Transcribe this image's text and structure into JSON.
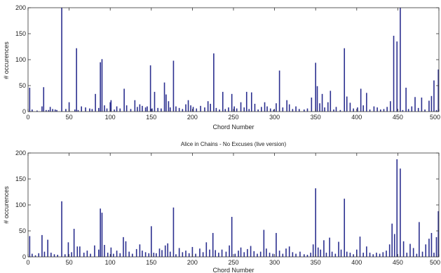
{
  "chart_data": [
    {
      "type": "bar",
      "title": "",
      "xlabel": "Chord Number",
      "ylabel": "# occurences",
      "xlim": [
        0,
        500
      ],
      "ylim": [
        0,
        200
      ],
      "xticks": [
        0,
        50,
        100,
        150,
        200,
        250,
        300,
        350,
        400,
        450,
        500
      ],
      "xtick_labels": [
        "0",
        "50",
        "100",
        "150",
        "200",
        "250",
        "300",
        "350",
        "400",
        "450",
        "500"
      ],
      "yticks": [
        0,
        50,
        100,
        150,
        200
      ],
      "ytick_labels": [
        "0",
        "50",
        "100",
        "150",
        "200"
      ],
      "color": "#2b2f8f",
      "bars": [
        [
          2,
          46
        ],
        [
          5,
          4
        ],
        [
          11,
          2
        ],
        [
          17,
          10
        ],
        [
          19,
          47
        ],
        [
          22,
          3
        ],
        [
          25,
          3
        ],
        [
          27,
          9
        ],
        [
          30,
          5
        ],
        [
          33,
          4
        ],
        [
          35,
          3
        ],
        [
          41,
          200
        ],
        [
          46,
          5
        ],
        [
          50,
          18
        ],
        [
          57,
          4
        ],
        [
          59,
          122
        ],
        [
          61,
          3
        ],
        [
          65,
          10
        ],
        [
          70,
          8
        ],
        [
          75,
          6
        ],
        [
          78,
          5
        ],
        [
          82,
          34
        ],
        [
          86,
          7
        ],
        [
          88,
          95
        ],
        [
          90,
          101
        ],
        [
          93,
          12
        ],
        [
          96,
          6
        ],
        [
          100,
          18
        ],
        [
          101,
          22
        ],
        [
          105,
          4
        ],
        [
          108,
          10
        ],
        [
          112,
          6
        ],
        [
          117,
          44
        ],
        [
          120,
          12
        ],
        [
          125,
          5
        ],
        [
          130,
          22
        ],
        [
          133,
          9
        ],
        [
          136,
          14
        ],
        [
          139,
          11
        ],
        [
          143,
          8
        ],
        [
          145,
          10
        ],
        [
          149,
          89
        ],
        [
          151,
          6
        ],
        [
          154,
          38
        ],
        [
          158,
          7
        ],
        [
          162,
          6
        ],
        [
          166,
          56
        ],
        [
          168,
          33
        ],
        [
          171,
          20
        ],
        [
          173,
          8
        ],
        [
          177,
          98
        ],
        [
          180,
          10
        ],
        [
          184,
          7
        ],
        [
          188,
          5
        ],
        [
          192,
          14
        ],
        [
          195,
          22
        ],
        [
          198,
          12
        ],
        [
          201,
          9
        ],
        [
          205,
          6
        ],
        [
          210,
          11
        ],
        [
          215,
          8
        ],
        [
          219,
          20
        ],
        [
          222,
          15
        ],
        [
          226,
          112
        ],
        [
          229,
          7
        ],
        [
          233,
          4
        ],
        [
          237,
          38
        ],
        [
          240,
          5
        ],
        [
          244,
          8
        ],
        [
          248,
          34
        ],
        [
          251,
          10
        ],
        [
          254,
          6
        ],
        [
          259,
          18
        ],
        [
          263,
          8
        ],
        [
          266,
          38
        ],
        [
          269,
          5
        ],
        [
          272,
          37
        ],
        [
          276,
          15
        ],
        [
          280,
          4
        ],
        [
          284,
          9
        ],
        [
          288,
          18
        ],
        [
          291,
          10
        ],
        [
          295,
          6
        ],
        [
          299,
          4
        ],
        [
          302,
          16
        ],
        [
          306,
          79
        ],
        [
          310,
          8
        ],
        [
          315,
          22
        ],
        [
          318,
          14
        ],
        [
          322,
          5
        ],
        [
          326,
          10
        ],
        [
          330,
          5
        ],
        [
          336,
          4
        ],
        [
          340,
          6
        ],
        [
          345,
          27
        ],
        [
          350,
          94
        ],
        [
          352,
          49
        ],
        [
          355,
          16
        ],
        [
          358,
          34
        ],
        [
          361,
          8
        ],
        [
          365,
          18
        ],
        [
          368,
          40
        ],
        [
          372,
          4
        ],
        [
          375,
          9
        ],
        [
          380,
          3
        ],
        [
          385,
          122
        ],
        [
          388,
          29
        ],
        [
          392,
          17
        ],
        [
          396,
          6
        ],
        [
          401,
          8
        ],
        [
          405,
          44
        ],
        [
          408,
          12
        ],
        [
          412,
          36
        ],
        [
          416,
          4
        ],
        [
          421,
          10
        ],
        [
          425,
          8
        ],
        [
          429,
          4
        ],
        [
          433,
          5
        ],
        [
          437,
          9
        ],
        [
          441,
          20
        ],
        [
          445,
          146
        ],
        [
          449,
          135
        ],
        [
          453,
          200
        ],
        [
          456,
          3
        ],
        [
          460,
          46
        ],
        [
          463,
          5
        ],
        [
          467,
          10
        ],
        [
          471,
          28
        ],
        [
          475,
          7
        ],
        [
          479,
          27
        ],
        [
          483,
          4
        ],
        [
          488,
          21
        ],
        [
          491,
          30
        ],
        [
          494,
          60
        ],
        [
          497,
          3
        ],
        [
          500,
          81
        ]
      ]
    },
    {
      "type": "bar",
      "title": "Alice in Chains - No Excuses (live version)",
      "xlabel": "Chord Number",
      "ylabel": "# occurences",
      "xlim": [
        0,
        500
      ],
      "ylim": [
        0,
        200
      ],
      "xticks": [
        0,
        50,
        100,
        150,
        200,
        250,
        300,
        350,
        400,
        450,
        500
      ],
      "xtick_labels": [
        "0",
        "50",
        "100",
        "150",
        "200",
        "250",
        "300",
        "350",
        "400",
        "450",
        "500"
      ],
      "yticks": [
        0,
        50,
        100,
        150,
        200
      ],
      "ytick_labels": [
        "0",
        "50",
        "100",
        "150",
        "200"
      ],
      "color": "#2b2f8f",
      "bars": [
        [
          2,
          40
        ],
        [
          5,
          6
        ],
        [
          9,
          3
        ],
        [
          13,
          7
        ],
        [
          17,
          42
        ],
        [
          20,
          10
        ],
        [
          24,
          33
        ],
        [
          28,
          8
        ],
        [
          32,
          5
        ],
        [
          36,
          4
        ],
        [
          41,
          107
        ],
        [
          45,
          5
        ],
        [
          49,
          28
        ],
        [
          53,
          9
        ],
        [
          56,
          54
        ],
        [
          60,
          20
        ],
        [
          63,
          20
        ],
        [
          68,
          8
        ],
        [
          72,
          12
        ],
        [
          76,
          6
        ],
        [
          81,
          22
        ],
        [
          86,
          14
        ],
        [
          88,
          93
        ],
        [
          90,
          85
        ],
        [
          93,
          23
        ],
        [
          97,
          8
        ],
        [
          101,
          18
        ],
        [
          104,
          6
        ],
        [
          108,
          12
        ],
        [
          112,
          7
        ],
        [
          116,
          38
        ],
        [
          119,
          30
        ],
        [
          123,
          10
        ],
        [
          127,
          6
        ],
        [
          132,
          15
        ],
        [
          136,
          24
        ],
        [
          139,
          12
        ],
        [
          143,
          9
        ],
        [
          147,
          7
        ],
        [
          150,
          59
        ],
        [
          153,
          8
        ],
        [
          156,
          7
        ],
        [
          160,
          16
        ],
        [
          163,
          13
        ],
        [
          167,
          22
        ],
        [
          170,
          26
        ],
        [
          173,
          10
        ],
        [
          177,
          95
        ],
        [
          180,
          5
        ],
        [
          184,
          17
        ],
        [
          188,
          9
        ],
        [
          192,
          12
        ],
        [
          196,
          7
        ],
        [
          200,
          19
        ],
        [
          204,
          6
        ],
        [
          209,
          16
        ],
        [
          213,
          9
        ],
        [
          217,
          28
        ],
        [
          221,
          14
        ],
        [
          225,
          46
        ],
        [
          228,
          13
        ],
        [
          232,
          8
        ],
        [
          236,
          14
        ],
        [
          241,
          10
        ],
        [
          245,
          22
        ],
        [
          248,
          77
        ],
        [
          252,
          6
        ],
        [
          256,
          12
        ],
        [
          259,
          18
        ],
        [
          263,
          9
        ],
        [
          267,
          15
        ],
        [
          271,
          21
        ],
        [
          275,
          11
        ],
        [
          279,
          6
        ],
        [
          283,
          10
        ],
        [
          287,
          52
        ],
        [
          290,
          16
        ],
        [
          294,
          8
        ],
        [
          298,
          6
        ],
        [
          302,
          46
        ],
        [
          306,
          12
        ],
        [
          310,
          6
        ],
        [
          314,
          16
        ],
        [
          318,
          20
        ],
        [
          322,
          9
        ],
        [
          326,
          6
        ],
        [
          331,
          10
        ],
        [
          336,
          5
        ],
        [
          340,
          4
        ],
        [
          344,
          8
        ],
        [
          347,
          24
        ],
        [
          350,
          132
        ],
        [
          353,
          18
        ],
        [
          356,
          14
        ],
        [
          360,
          32
        ],
        [
          363,
          8
        ],
        [
          367,
          37
        ],
        [
          370,
          10
        ],
        [
          374,
          6
        ],
        [
          378,
          29
        ],
        [
          381,
          14
        ],
        [
          385,
          112
        ],
        [
          388,
          10
        ],
        [
          392,
          8
        ],
        [
          396,
          5
        ],
        [
          400,
          14
        ],
        [
          404,
          39
        ],
        [
          408,
          8
        ],
        [
          412,
          20
        ],
        [
          416,
          8
        ],
        [
          420,
          5
        ],
        [
          424,
          8
        ],
        [
          428,
          6
        ],
        [
          432,
          9
        ],
        [
          436,
          12
        ],
        [
          440,
          24
        ],
        [
          443,
          64
        ],
        [
          446,
          44
        ],
        [
          449,
          188
        ],
        [
          453,
          170
        ],
        [
          457,
          30
        ],
        [
          461,
          8
        ],
        [
          465,
          25
        ],
        [
          469,
          17
        ],
        [
          473,
          6
        ],
        [
          476,
          67
        ],
        [
          480,
          10
        ],
        [
          484,
          24
        ],
        [
          488,
          35
        ],
        [
          491,
          46
        ],
        [
          494,
          8
        ],
        [
          497,
          38
        ],
        [
          500,
          88
        ]
      ]
    }
  ]
}
